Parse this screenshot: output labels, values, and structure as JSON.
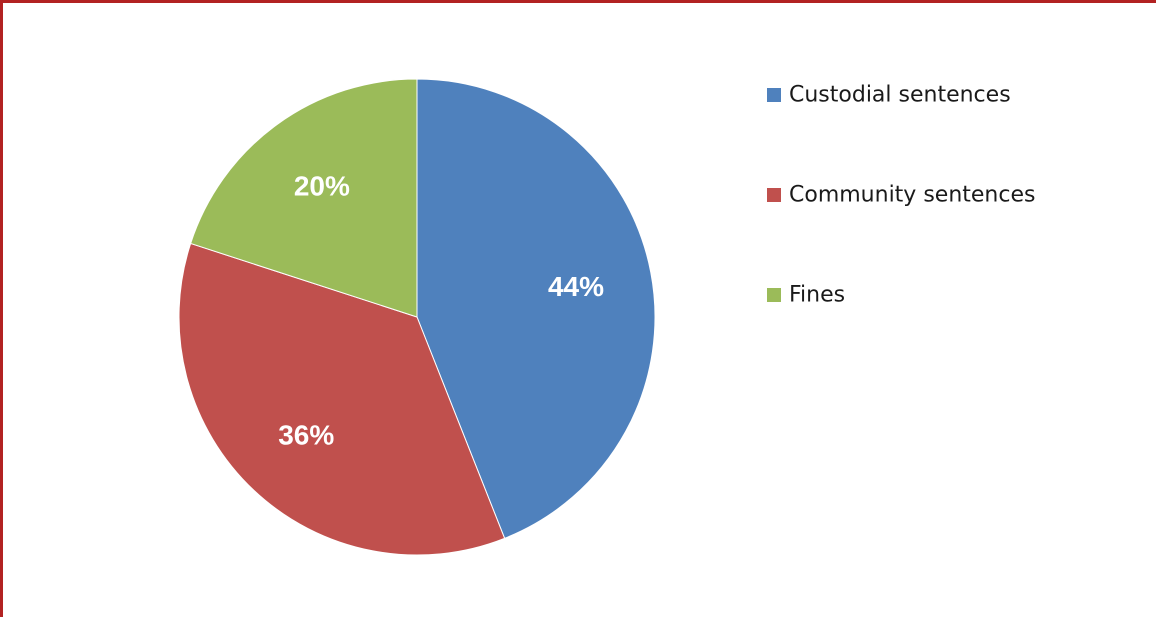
{
  "chart_data": {
    "type": "pie",
    "title": "",
    "slices": [
      {
        "label": "Custodial sentences",
        "value": 44,
        "display": "44%",
        "color": "#4f81bd"
      },
      {
        "label": "Community sentences",
        "value": 36,
        "display": "36%",
        "color": "#c0504d"
      },
      {
        "label": "Fines",
        "value": 20,
        "display": "20%",
        "color": "#9bbb59"
      }
    ],
    "legend_position": "right",
    "start_angle": "top",
    "direction": "clockwise"
  }
}
